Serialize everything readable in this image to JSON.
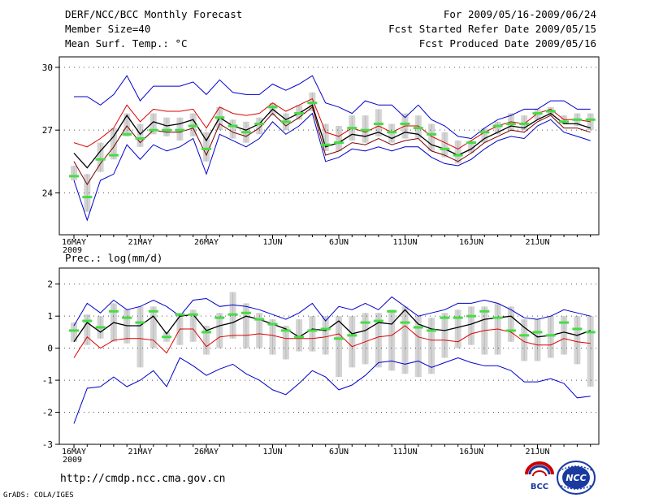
{
  "header": {
    "title": "DERF/NCC/BCC Monthly Forecast",
    "member_size": "Member Size=40",
    "variable_top": "Mean Surf. Temp.: °C",
    "period": "For 2009/05/16-2009/06/24",
    "started": "Fcst Started Refer Date 2009/05/15",
    "produced": "Fcst Produced Date 2009/05/16"
  },
  "footer": {
    "url": "http://cmdp.ncc.cma.gov.cn",
    "grads": "GrADS: COLA/IGES",
    "logo_left": "BCC",
    "logo_right": "NCC"
  },
  "colors": {
    "ensemble_mean": "#000000",
    "red_line": "#dd0000",
    "envelope": "#0000cc",
    "box": "#d4d4d4",
    "median_mark": "#44dd44",
    "dotted_grid": "#555555"
  },
  "chart_data": [
    {
      "type": "line",
      "title": "Mean Surf. Temp.: °C",
      "ylim": [
        22,
        30.5
      ],
      "yticks": [
        24,
        27,
        30
      ],
      "x_tick_labels": [
        "16MAY",
        "21MAY",
        "26MAY",
        "1JUN",
        "6JUN",
        "11JUN",
        "16JUN",
        "21JUN"
      ],
      "x_sub_label": "2009",
      "days": 40,
      "series": [
        {
          "name": "max",
          "values": [
            28.6,
            28.6,
            28.2,
            28.7,
            29.6,
            28.4,
            29.1,
            29.1,
            29.1,
            29.3,
            28.7,
            29.4,
            28.8,
            28.7,
            28.7,
            29.2,
            28.9,
            29.2,
            29.6,
            28.3,
            28.1,
            27.8,
            28.4,
            28.2,
            28.2,
            27.6,
            28.2,
            27.5,
            27.2,
            26.7,
            26.6,
            27.1,
            27.5,
            27.7,
            28.0,
            28.0,
            28.4,
            28.4,
            28.0,
            28.0
          ]
        },
        {
          "name": "red",
          "values": [
            26.4,
            26.2,
            26.6,
            27.1,
            28.2,
            27.4,
            28.0,
            27.9,
            27.9,
            28.0,
            27.1,
            28.1,
            27.8,
            27.7,
            27.8,
            28.3,
            27.9,
            28.2,
            28.5,
            26.9,
            26.7,
            27.1,
            26.9,
            27.2,
            26.9,
            27.2,
            27.2,
            26.7,
            26.4,
            26.1,
            26.5,
            26.9,
            27.2,
            27.4,
            27.3,
            27.8,
            28.0,
            27.5,
            27.5,
            27.4
          ]
        },
        {
          "name": "mean",
          "values": [
            25.9,
            25.2,
            26.0,
            26.7,
            27.7,
            26.8,
            27.4,
            27.2,
            27.3,
            27.5,
            26.5,
            27.6,
            27.2,
            27.0,
            27.3,
            28.0,
            27.5,
            27.8,
            28.2,
            26.2,
            26.4,
            26.8,
            26.7,
            26.9,
            26.6,
            26.9,
            26.8,
            26.3,
            26.1,
            25.8,
            26.1,
            26.6,
            26.9,
            27.2,
            27.1,
            27.5,
            27.8,
            27.3,
            27.3,
            27.1
          ]
        },
        {
          "name": "dark_red",
          "values": [
            25.5,
            24.4,
            25.4,
            26.2,
            27.2,
            26.4,
            27.0,
            26.9,
            26.9,
            27.1,
            25.8,
            27.3,
            26.9,
            26.7,
            27.1,
            27.8,
            27.2,
            27.6,
            28.1,
            25.8,
            26.0,
            26.4,
            26.3,
            26.6,
            26.3,
            26.5,
            26.6,
            26.0,
            25.8,
            25.5,
            25.9,
            26.4,
            26.7,
            27.0,
            26.9,
            27.4,
            27.7,
            27.1,
            27.1,
            26.9
          ]
        },
        {
          "name": "min",
          "values": [
            24.6,
            22.7,
            24.6,
            24.9,
            26.3,
            25.6,
            26.3,
            26.0,
            26.2,
            26.6,
            24.9,
            26.8,
            26.5,
            26.2,
            26.6,
            27.4,
            26.8,
            27.2,
            27.8,
            25.5,
            25.7,
            26.1,
            26.0,
            26.2,
            26.0,
            26.2,
            26.2,
            25.7,
            25.4,
            25.3,
            25.6,
            26.1,
            26.5,
            26.7,
            26.6,
            27.2,
            27.5,
            26.9,
            26.7,
            26.5
          ]
        }
      ],
      "boxes_low": [
        24.6,
        23.1,
        25.0,
        25.6,
        26.7,
        26.2,
        26.8,
        26.7,
        26.5,
        26.7,
        25.5,
        27.0,
        26.6,
        26.4,
        26.8,
        27.7,
        27.0,
        27.5,
        27.9,
        26.0,
        26.0,
        26.5,
        26.4,
        26.7,
        26.4,
        26.6,
        26.6,
        26.0,
        25.7,
        25.4,
        25.9,
        26.4,
        26.8,
        27.0,
        27.0,
        27.5,
        27.7,
        27.3,
        27.2,
        27.0
      ],
      "boxes_high": [
        25.3,
        24.9,
        26.4,
        27.1,
        27.8,
        27.3,
        27.8,
        27.6,
        27.6,
        27.8,
        26.9,
        28.1,
        27.5,
        27.4,
        27.6,
        28.3,
        27.8,
        28.2,
        28.8,
        27.3,
        27.2,
        27.7,
        27.7,
        28.0,
        27.3,
        27.8,
        27.7,
        27.3,
        26.9,
        26.5,
        26.5,
        27.1,
        27.4,
        27.8,
        27.7,
        28.0,
        28.1,
        27.7,
        27.8,
        27.8
      ],
      "medians": [
        24.8,
        23.8,
        25.6,
        25.8,
        26.8,
        26.6,
        27.0,
        27.0,
        27.0,
        27.2,
        26.1,
        27.6,
        27.2,
        26.9,
        27.3,
        28.1,
        27.4,
        27.8,
        28.3,
        26.3,
        26.4,
        27.1,
        27.0,
        27.3,
        26.9,
        27.3,
        27.1,
        26.8,
        26.1,
        25.8,
        26.4,
        26.9,
        27.2,
        27.3,
        27.3,
        27.8,
        27.9,
        27.4,
        27.5,
        27.5
      ]
    },
    {
      "type": "line",
      "title": "Prec.: log(mm/d)",
      "ylim": [
        -3,
        2.5
      ],
      "yticks": [
        -3,
        -2,
        -1,
        0,
        1,
        2
      ],
      "x_tick_labels": [
        "16MAY",
        "21MAY",
        "26MAY",
        "1JUN",
        "6JUN",
        "11JUN",
        "16JUN",
        "21JUN"
      ],
      "x_sub_label": "2009",
      "days": 40,
      "series": [
        {
          "name": "max",
          "values": [
            0.7,
            1.4,
            1.1,
            1.5,
            1.2,
            1.3,
            1.5,
            1.3,
            1.0,
            1.5,
            1.55,
            1.3,
            1.35,
            1.3,
            1.2,
            1.05,
            0.9,
            1.1,
            1.4,
            0.85,
            1.3,
            1.2,
            1.4,
            1.2,
            1.6,
            1.3,
            1.0,
            1.1,
            1.2,
            1.4,
            1.4,
            1.5,
            1.4,
            1.2,
            0.95,
            0.9,
            1.0,
            1.2,
            1.1,
            1.0
          ]
        },
        {
          "name": "mean",
          "values": [
            0.2,
            0.8,
            0.5,
            0.8,
            0.7,
            0.7,
            1.0,
            0.45,
            1.0,
            1.05,
            0.55,
            0.7,
            0.8,
            1.0,
            0.9,
            0.75,
            0.6,
            0.35,
            0.6,
            0.55,
            0.85,
            0.45,
            0.55,
            0.8,
            0.75,
            1.2,
            0.75,
            0.6,
            0.55,
            0.65,
            0.75,
            0.9,
            0.95,
            1.0,
            0.65,
            0.35,
            0.4,
            0.5,
            0.4,
            0.55
          ]
        },
        {
          "name": "red",
          "values": [
            -0.3,
            0.35,
            0.0,
            0.25,
            0.3,
            0.3,
            0.25,
            -0.15,
            0.6,
            0.6,
            0.05,
            0.35,
            0.4,
            0.4,
            0.45,
            0.4,
            0.3,
            0.3,
            0.3,
            0.35,
            0.45,
            0.05,
            0.2,
            0.35,
            0.4,
            0.7,
            0.35,
            0.25,
            0.25,
            0.2,
            0.45,
            0.55,
            0.6,
            0.5,
            0.2,
            0.1,
            0.1,
            0.3,
            0.2,
            0.15
          ]
        },
        {
          "name": "min",
          "values": [
            -2.35,
            -1.25,
            -1.2,
            -0.9,
            -1.2,
            -1.0,
            -0.7,
            -1.2,
            -0.3,
            -0.55,
            -0.85,
            -0.65,
            -0.5,
            -0.8,
            -1.0,
            -1.3,
            -1.45,
            -1.1,
            -0.7,
            -0.9,
            -1.3,
            -1.15,
            -0.85,
            -0.45,
            -0.4,
            -0.5,
            -0.4,
            -0.6,
            -0.45,
            -0.3,
            -0.45,
            -0.55,
            -0.55,
            -0.7,
            -1.05,
            -1.05,
            -0.95,
            -1.1,
            -1.55,
            -1.5
          ]
        }
      ],
      "boxes_low": [
        0.2,
        0.1,
        0.3,
        0.2,
        0.15,
        -0.6,
        0.0,
        0.2,
        0.1,
        0.2,
        -0.2,
        0.0,
        0.3,
        0.0,
        0.0,
        -0.2,
        -0.35,
        -0.1,
        -0.1,
        -0.2,
        -0.9,
        -0.6,
        -0.5,
        -0.6,
        -0.7,
        -0.8,
        -0.9,
        -0.8,
        -0.3,
        0.0,
        0.1,
        -0.2,
        -0.2,
        0.2,
        -0.4,
        -0.4,
        -0.3,
        -0.2,
        -0.5,
        -1.2
      ],
      "boxes_high": [
        0.8,
        1.05,
        1.0,
        1.4,
        1.2,
        1.3,
        1.3,
        0.5,
        1.1,
        1.2,
        0.7,
        1.1,
        1.75,
        1.4,
        1.1,
        0.9,
        0.7,
        0.9,
        1.0,
        1.0,
        1.0,
        1.0,
        1.1,
        1.1,
        1.2,
        1.3,
        1.0,
        0.95,
        1.1,
        1.2,
        1.3,
        1.3,
        1.4,
        1.3,
        0.9,
        0.9,
        1.0,
        1.0,
        1.0,
        1.0
      ],
      "medians": [
        0.55,
        0.85,
        0.65,
        1.15,
        0.95,
        0.8,
        1.15,
        0.35,
        1.05,
        1.05,
        0.5,
        0.95,
        1.05,
        1.1,
        0.9,
        0.75,
        0.55,
        0.35,
        0.55,
        0.6,
        0.3,
        0.4,
        0.8,
        0.85,
        1.15,
        0.8,
        0.65,
        0.55,
        0.95,
        0.95,
        1.0,
        1.15,
        0.95,
        0.55,
        0.4,
        0.5,
        0.4,
        0.8,
        0.6,
        0.5
      ]
    }
  ]
}
